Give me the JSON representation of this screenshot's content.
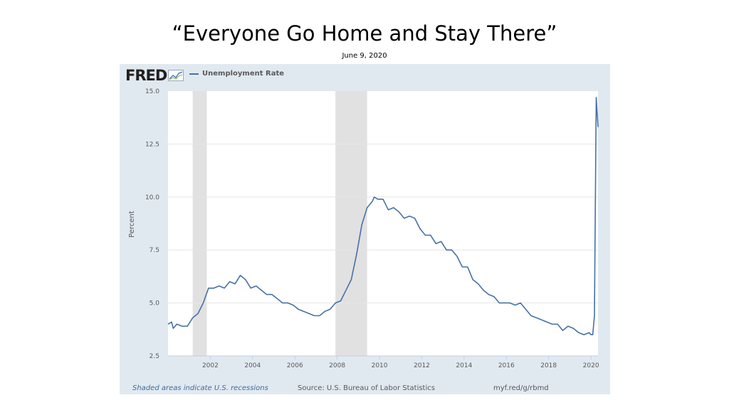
{
  "slide": {
    "title": "“Everyone Go Home and Stay There”",
    "subtitle": "June 9, 2020"
  },
  "fred": {
    "logo": "FRED",
    "series_color": "#4572a7",
    "recession_color": "#e1e1e1",
    "panel_color": "#e1e9f0",
    "footer_note": "Shaded areas indicate U.S. recessions",
    "source": "Source: U.S. Bureau of Labor Statistics",
    "link": "myf.red/g/rbmd"
  },
  "chart_data": {
    "type": "line",
    "xlabel": "",
    "ylabel": "Percent",
    "ylim": [
      2.5,
      15.0
    ],
    "xlim": [
      "2000-01",
      "2020-05"
    ],
    "yticks": [
      "15.0",
      "12.5",
      "10.0",
      "7.5",
      "5.0",
      "2.5"
    ],
    "xticks": [
      "2002",
      "2004",
      "2006",
      "2008",
      "2010",
      "2012",
      "2014",
      "2016",
      "2018",
      "2020"
    ],
    "grid": true,
    "legend": "top-left",
    "recessions": [
      {
        "start": "2001-03",
        "end": "2001-11"
      },
      {
        "start": "2007-12",
        "end": "2009-06"
      }
    ],
    "series": [
      {
        "name": "Unemployment Rate",
        "x": [
          "2000-01",
          "2000-03",
          "2000-04",
          "2000-06",
          "2000-09",
          "2000-12",
          "2001-03",
          "2001-06",
          "2001-09",
          "2001-12",
          "2002-03",
          "2002-06",
          "2002-09",
          "2002-12",
          "2003-03",
          "2003-06",
          "2003-09",
          "2003-12",
          "2004-03",
          "2004-06",
          "2004-09",
          "2004-12",
          "2005-03",
          "2005-06",
          "2005-09",
          "2005-12",
          "2006-03",
          "2006-06",
          "2006-09",
          "2006-12",
          "2007-03",
          "2007-06",
          "2007-09",
          "2007-12",
          "2008-03",
          "2008-06",
          "2008-09",
          "2008-12",
          "2009-03",
          "2009-06",
          "2009-09",
          "2009-10",
          "2009-12",
          "2010-03",
          "2010-06",
          "2010-09",
          "2010-12",
          "2011-03",
          "2011-06",
          "2011-09",
          "2011-12",
          "2012-03",
          "2012-06",
          "2012-09",
          "2012-12",
          "2013-03",
          "2013-06",
          "2013-09",
          "2013-12",
          "2014-03",
          "2014-06",
          "2014-09",
          "2014-12",
          "2015-03",
          "2015-06",
          "2015-09",
          "2015-12",
          "2016-03",
          "2016-06",
          "2016-09",
          "2016-12",
          "2017-03",
          "2017-06",
          "2017-09",
          "2017-12",
          "2018-03",
          "2018-06",
          "2018-09",
          "2018-12",
          "2019-03",
          "2019-06",
          "2019-09",
          "2019-12",
          "2020-01",
          "2020-02",
          "2020-03",
          "2020-04",
          "2020-05"
        ],
        "values": [
          4.0,
          4.1,
          3.8,
          4.0,
          3.9,
          3.9,
          4.3,
          4.5,
          5.0,
          5.7,
          5.7,
          5.8,
          5.7,
          6.0,
          5.9,
          6.3,
          6.1,
          5.7,
          5.8,
          5.6,
          5.4,
          5.4,
          5.2,
          5.0,
          5.0,
          4.9,
          4.7,
          4.6,
          4.5,
          4.4,
          4.4,
          4.6,
          4.7,
          5.0,
          5.1,
          5.6,
          6.1,
          7.3,
          8.7,
          9.5,
          9.8,
          10.0,
          9.9,
          9.9,
          9.4,
          9.5,
          9.3,
          9.0,
          9.1,
          9.0,
          8.5,
          8.2,
          8.2,
          7.8,
          7.9,
          7.5,
          7.5,
          7.2,
          6.7,
          6.7,
          6.1,
          5.9,
          5.6,
          5.4,
          5.3,
          5.0,
          5.0,
          5.0,
          4.9,
          5.0,
          4.7,
          4.4,
          4.3,
          4.2,
          4.1,
          4.0,
          4.0,
          3.7,
          3.9,
          3.8,
          3.6,
          3.5,
          3.6,
          3.5,
          3.5,
          4.4,
          14.7,
          13.3
        ]
      }
    ]
  }
}
